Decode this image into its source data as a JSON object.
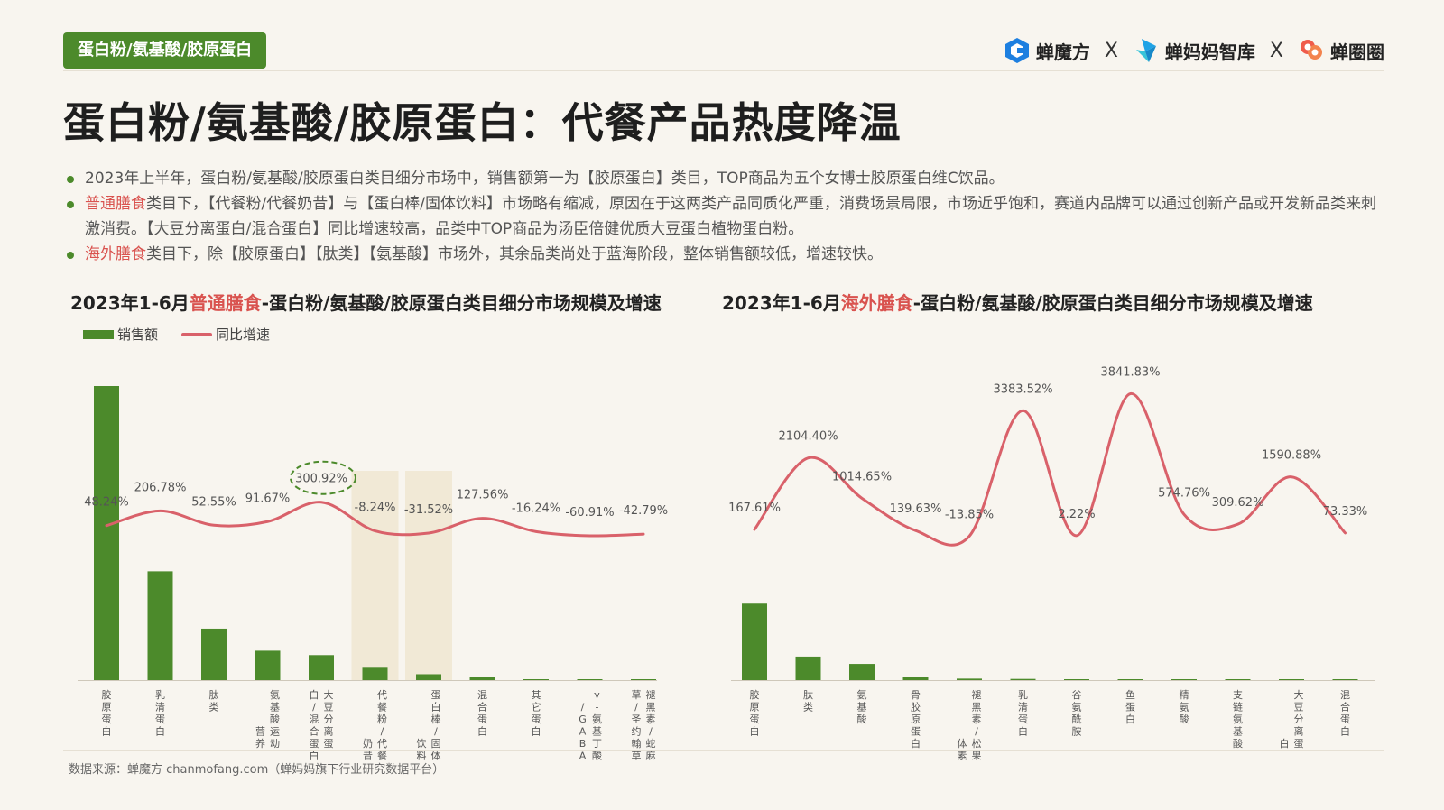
{
  "header": {
    "tag": "蛋白粉/氨基酸/胶原蛋白",
    "brands": [
      "蝉魔方",
      "蝉妈妈智库",
      "蝉圈圈"
    ],
    "separator": "X",
    "title": "蛋白粉/氨基酸/胶原蛋白：代餐产品热度降温"
  },
  "bullets": [
    {
      "highlight": "",
      "text": "2023年上半年，蛋白粉/氨基酸/胶原蛋白类目细分市场中，销售额第一为【胶原蛋白】类目，TOP商品为五个女博士胶原蛋白维C饮品。"
    },
    {
      "highlight": "普通膳食",
      "text": "类目下，【代餐粉/代餐奶昔】与【蛋白棒/固体饮料】市场略有缩减，原因在于这两类产品同质化严重，消费场景局限，市场近乎饱和，赛道内品牌可以通过创新产品或开发新品类来刺激消费。【大豆分离蛋白/混合蛋白】同比增速较高，品类中TOP商品为汤臣倍健优质大豆蛋白植物蛋白粉。"
    },
    {
      "highlight": "海外膳食",
      "text": "类目下，除【胶原蛋白】【肽类】【氨基酸】市场外，其余品类尚处于蓝海阶段，整体销售额较低，增速较快。"
    }
  ],
  "legend": {
    "bar": "销售额",
    "line": "同比增速"
  },
  "source": "数据来源：蝉魔方 chanmofang.com（蝉妈妈旗下行业研究数据平台）",
  "colors": {
    "bar": "#4c8a2b",
    "line": "#d9616a",
    "highlight": "#d9534f",
    "band": "#efe6cf"
  },
  "chart_data": [
    {
      "type": "bar+line",
      "title_pre": "2023年1-6月",
      "title_hl": "普通膳食",
      "title_post": "-蛋白粉/氨基酸/胶原蛋白类目细分市场规模及增速",
      "categories": [
        "胶原蛋白",
        "乳清蛋白",
        "肽类",
        "氨基酸运动营养",
        "大豆分离蛋白/混合蛋白",
        "代餐粉/代餐奶昔",
        "蛋白棒/固体饮料",
        "混合蛋白",
        "其它蛋白",
        "γ-氨基丁酸/GABA",
        "褪黑素/蛇麻草/圣约翰草"
      ],
      "category_lines": [
        [
          "胶",
          "原",
          "蛋",
          "白"
        ],
        [
          "乳",
          "清",
          "蛋",
          "白"
        ],
        [
          "肽",
          "类"
        ],
        [
          "氨",
          "基",
          "酸",
          "运",
          "动"
        ],
        [
          "大",
          "豆",
          "分",
          "离",
          "蛋"
        ],
        [
          "代",
          "餐",
          "粉",
          "/",
          "代",
          "餐"
        ],
        [
          "蛋",
          "白",
          "棒",
          "/",
          "固",
          "体"
        ],
        [
          "混",
          "合",
          "蛋",
          "白"
        ],
        [
          "其",
          "它",
          "蛋",
          "白"
        ],
        [
          "γ",
          "-",
          "氨",
          "基",
          "丁",
          "酸"
        ],
        [
          "褪",
          "黑",
          "素",
          "/",
          "蛇",
          "麻"
        ]
      ],
      "category_lines2": [
        [],
        [],
        [],
        [
          "营",
          "养"
        ],
        [
          "白",
          "/",
          "混",
          "合",
          "蛋",
          "白"
        ],
        [
          "奶",
          "昔"
        ],
        [
          "饮",
          "料"
        ],
        [],
        [],
        [
          "/",
          "G",
          "A",
          "B",
          "A"
        ],
        [
          "草",
          "/",
          "圣",
          "约",
          "翰",
          "草"
        ]
      ],
      "sales_index": [
        100,
        37,
        17.5,
        10,
        8.5,
        4.2,
        2,
        1.2,
        0.3,
        0.2,
        0.1
      ],
      "growth": [
        48.24,
        206.78,
        52.55,
        91.67,
        300.92,
        -8.24,
        -31.52,
        127.56,
        -16.24,
        -60.91,
        -42.79
      ],
      "growth_labels": [
        "48.24%",
        "206.78%",
        "52.55%",
        "91.67%",
        "300.92%",
        "-8.24%",
        "-31.52%",
        "127.56%",
        "-16.24%",
        "-60.91%",
        "-42.79%"
      ],
      "highlighted_bands": [
        5,
        6
      ],
      "circled": [
        4
      ]
    },
    {
      "type": "bar+line",
      "title_pre": "2023年1-6月",
      "title_hl": "海外膳食",
      "title_post": "-蛋白粉/氨基酸/胶原蛋白类目细分市场规模及增速",
      "categories": [
        "胶原蛋白",
        "肽类",
        "氨基酸",
        "骨胶原蛋白",
        "褪黑素/松果体素",
        "乳清蛋白",
        "谷氨酰胺",
        "鱼蛋白",
        "精氨酸",
        "支链氨基酸",
        "大豆分离蛋白",
        "混合蛋白"
      ],
      "category_lines": [
        [
          "胶",
          "原",
          "蛋",
          "白"
        ],
        [
          "肽",
          "类"
        ],
        [
          "氨",
          "基",
          "酸"
        ],
        [
          "骨",
          "胶",
          "原",
          "蛋",
          "白"
        ],
        [
          "褪",
          "黑",
          "素",
          "/",
          "松",
          "果"
        ],
        [
          "乳",
          "清",
          "蛋",
          "白"
        ],
        [
          "谷",
          "氨",
          "酰",
          "胺"
        ],
        [
          "鱼",
          "蛋",
          "白"
        ],
        [
          "精",
          "氨",
          "酸"
        ],
        [
          "支",
          "链",
          "氨",
          "基",
          "酸"
        ],
        [
          "大",
          "豆",
          "分",
          "离",
          "蛋"
        ],
        [
          "混",
          "合",
          "蛋",
          "白"
        ]
      ],
      "category_lines2": [
        [],
        [],
        [],
        [],
        [
          "体",
          "素"
        ],
        [],
        [],
        [],
        [],
        [],
        [
          "白"
        ],
        []
      ],
      "sales_index": [
        26,
        8,
        5.5,
        1.2,
        0.5,
        0.4,
        0.3,
        0.2,
        0.15,
        0.1,
        0.1,
        0.05
      ],
      "growth": [
        167.61,
        2104.4,
        1014.65,
        139.63,
        -13.85,
        3383.52,
        2.22,
        3841.83,
        574.76,
        309.62,
        1590.88,
        73.33
      ],
      "growth_labels": [
        "167.61%",
        "2104.40%",
        "1014.65%",
        "139.63%",
        "-13.85%",
        "3383.52%",
        "2.22%",
        "3841.83%",
        "574.76%",
        "309.62%",
        "1590.88%",
        "73.33%"
      ]
    }
  ]
}
